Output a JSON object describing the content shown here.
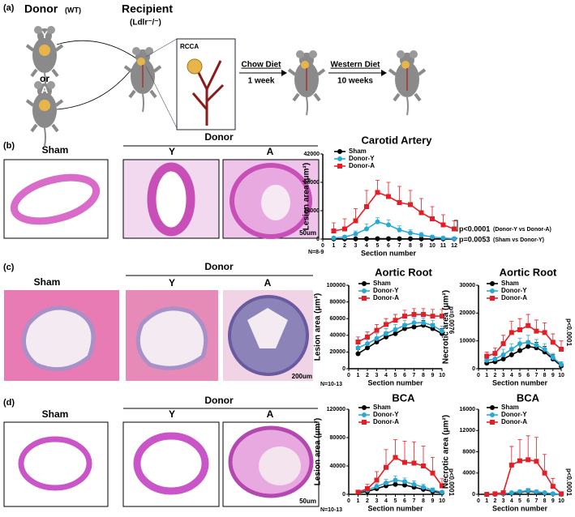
{
  "figure": {
    "panels": [
      "(a)",
      "(b)",
      "(c)",
      "(d)"
    ]
  },
  "schematic": {
    "donor": "Donor",
    "donor_strain": "(WT)",
    "recipient": "Recipient",
    "recipient_strain": "(Ldlr⁻/⁻)",
    "y": "Y",
    "or": "or",
    "a": "A",
    "inset": "RCCA",
    "step1": "Chow Diet",
    "step1_time": "1 week",
    "step2": "Western Diet",
    "step2_time": "10 weeks"
  },
  "micrographs": [
    {
      "sham": "Sham",
      "donor": "Donor",
      "y": "Y",
      "a": "A",
      "scale": "50um"
    },
    {
      "sham": "Sham",
      "donor": "Donor",
      "y": "Y",
      "a": "A",
      "scale": "200um"
    },
    {
      "sham": "Sham",
      "donor": "Donor",
      "y": "Y",
      "a": "A",
      "scale": "50um"
    }
  ],
  "chart_data": [
    {
      "type": "line",
      "title": "Carotid Artery",
      "xlabel": "Section number",
      "ylabel": "Lesion area (μm²)",
      "x": [
        1,
        2,
        3,
        4,
        5,
        6,
        7,
        8,
        9,
        10,
        11,
        12
      ],
      "xlim": [
        0,
        12
      ],
      "xticks": [
        0,
        1,
        2,
        3,
        4,
        5,
        6,
        7,
        8,
        9,
        10,
        11,
        12
      ],
      "ylim": [
        0,
        42000
      ],
      "yticks": [
        0,
        14000,
        28000,
        42000
      ],
      "series": [
        {
          "name": "Sham",
          "color": "#000000",
          "marker": "circle",
          "values": [
            100,
            100,
            100,
            150,
            200,
            200,
            150,
            150,
            100,
            100,
            100,
            100
          ],
          "errors": [
            100,
            100,
            100,
            150,
            200,
            200,
            150,
            150,
            100,
            100,
            100,
            100
          ]
        },
        {
          "name": "Donor-Y",
          "color": "#29a9d6",
          "marker": "circle",
          "values": [
            500,
            1000,
            2500,
            5000,
            8500,
            7000,
            4500,
            3000,
            2000,
            1000,
            500,
            200
          ],
          "errors": [
            500,
            800,
            1500,
            2500,
            2000,
            2500,
            2000,
            1500,
            1200,
            800,
            500,
            300
          ]
        },
        {
          "name": "Donor-A",
          "color": "#e21f26",
          "marker": "square",
          "values": [
            4000,
            5000,
            9000,
            16000,
            23000,
            21000,
            18000,
            17000,
            13000,
            10000,
            7000,
            5000
          ],
          "errors": [
            4000,
            5000,
            6000,
            8000,
            6000,
            7000,
            8000,
            7000,
            7000,
            6000,
            5000,
            4000
          ]
        }
      ],
      "annotations": [
        "p<0.0001",
        "(Donor-Y vs Donor-A)",
        "p=0.0053",
        "(Sham vs Donor-Y)",
        "N=8-9"
      ]
    },
    {
      "type": "line",
      "title": "Aortic Root",
      "xlabel": "Section number",
      "ylabel": "Lesion area (μm²)",
      "x": [
        1,
        2,
        3,
        4,
        5,
        6,
        7,
        8,
        9,
        10
      ],
      "xlim": [
        0,
        10
      ],
      "xticks": [
        0,
        1,
        2,
        3,
        4,
        5,
        6,
        7,
        8,
        9,
        10
      ],
      "ylim": [
        0,
        100000
      ],
      "yticks": [
        0,
        20000,
        40000,
        60000,
        80000,
        100000
      ],
      "series": [
        {
          "name": "Sham",
          "color": "#000000",
          "marker": "circle",
          "values": [
            18000,
            25000,
            32000,
            38000,
            42000,
            48000,
            50000,
            52000,
            48000,
            42000
          ],
          "errors": [
            5000,
            5000,
            6000,
            6000,
            6000,
            6000,
            6000,
            6000,
            6000,
            6000
          ]
        },
        {
          "name": "Donor-Y",
          "color": "#29a9d6",
          "marker": "circle",
          "values": [
            25000,
            30000,
            36000,
            42000,
            47000,
            52000,
            55000,
            55000,
            52000,
            45000
          ],
          "errors": [
            5000,
            5000,
            6000,
            6000,
            6000,
            6000,
            6000,
            6000,
            6000,
            6000
          ]
        },
        {
          "name": "Donor-A",
          "color": "#e21f26",
          "marker": "square",
          "values": [
            32000,
            38000,
            46000,
            53000,
            58000,
            63000,
            65000,
            65000,
            63000,
            63000
          ],
          "errors": [
            6000,
            6000,
            7000,
            7000,
            7000,
            7000,
            7000,
            7000,
            8000,
            8000
          ]
        }
      ],
      "annotations": [
        "p=0.0076",
        "N=10-13"
      ]
    },
    {
      "type": "line",
      "title": "Aortic Root",
      "xlabel": "Section number",
      "ylabel": "Necrotic area (μm²)",
      "x": [
        1,
        2,
        3,
        4,
        5,
        6,
        7,
        8,
        9,
        10
      ],
      "xlim": [
        0,
        10
      ],
      "xticks": [
        0,
        1,
        2,
        3,
        4,
        5,
        6,
        7,
        8,
        9,
        10
      ],
      "ylim": [
        0,
        30000
      ],
      "yticks": [
        0,
        10000,
        20000,
        30000
      ],
      "series": [
        {
          "name": "Sham",
          "color": "#000000",
          "marker": "circle",
          "values": [
            2000,
            2500,
            3500,
            5000,
            6500,
            8000,
            7500,
            6000,
            3500,
            1000
          ],
          "errors": [
            1000,
            1000,
            1500,
            1500,
            2000,
            2000,
            2000,
            2000,
            1500,
            1000
          ]
        },
        {
          "name": "Donor-Y",
          "color": "#29a9d6",
          "marker": "circle",
          "values": [
            3000,
            3500,
            5000,
            7000,
            9000,
            9500,
            8500,
            7000,
            4000,
            1500
          ],
          "errors": [
            1000,
            1500,
            2000,
            2000,
            2000,
            2500,
            2000,
            2000,
            1500,
            1000
          ]
        },
        {
          "name": "Donor-A",
          "color": "#e21f26",
          "marker": "square",
          "values": [
            4500,
            5500,
            9000,
            13000,
            14000,
            15500,
            13500,
            13000,
            9500,
            7000
          ],
          "errors": [
            1500,
            2000,
            3000,
            4000,
            4000,
            4000,
            4000,
            3500,
            3000,
            3000
          ]
        }
      ],
      "annotations": [
        "p<0.0001"
      ]
    },
    {
      "type": "line",
      "title": "BCA",
      "xlabel": "Section number",
      "ylabel": "Lesion area (μm²)",
      "x": [
        1,
        2,
        3,
        4,
        5,
        6,
        7,
        8,
        9,
        10
      ],
      "xlim": [
        0,
        10
      ],
      "xticks": [
        0,
        1,
        2,
        3,
        4,
        5,
        6,
        7,
        8,
        9,
        10
      ],
      "ylim": [
        0,
        120000
      ],
      "yticks": [
        0,
        40000,
        80000,
        120000
      ],
      "series": [
        {
          "name": "Sham",
          "color": "#000000",
          "marker": "circle",
          "values": [
            2000,
            4000,
            8000,
            12000,
            14000,
            13000,
            10000,
            7000,
            4000,
            2000
          ],
          "errors": [
            1000,
            2000,
            3000,
            4000,
            4000,
            4000,
            3000,
            3000,
            2000,
            1000
          ]
        },
        {
          "name": "Donor-Y",
          "color": "#29a9d6",
          "marker": "circle",
          "values": [
            3000,
            6000,
            11000,
            16000,
            20000,
            18000,
            14000,
            10000,
            6000,
            3000
          ],
          "errors": [
            2000,
            3000,
            4000,
            5000,
            6000,
            5000,
            5000,
            4000,
            3000,
            2000
          ]
        },
        {
          "name": "Donor-A",
          "color": "#e21f26",
          "marker": "square",
          "values": [
            3000,
            8000,
            20000,
            38000,
            52000,
            45000,
            44000,
            40000,
            30000,
            12000
          ],
          "errors": [
            2000,
            6000,
            12000,
            25000,
            25000,
            30000,
            30000,
            28000,
            22000,
            10000
          ]
        }
      ],
      "annotations": [
        "p<0.0001",
        "N=10-13"
      ]
    },
    {
      "type": "line",
      "title": "BCA",
      "xlabel": "Section number",
      "ylabel": "Necrotic area (μm²)",
      "x": [
        1,
        2,
        3,
        4,
        5,
        6,
        7,
        8,
        9,
        10
      ],
      "xlim": [
        0,
        10
      ],
      "xticks": [
        0,
        1,
        2,
        3,
        4,
        5,
        6,
        7,
        8,
        9,
        10
      ],
      "ylim": [
        0,
        16000
      ],
      "yticks": [
        0,
        4000,
        8000,
        12000,
        16000
      ],
      "series": [
        {
          "name": "Sham",
          "color": "#000000",
          "marker": "circle",
          "values": [
            0,
            0,
            100,
            200,
            400,
            600,
            400,
            200,
            100,
            0
          ],
          "errors": [
            0,
            0,
            100,
            200,
            300,
            400,
            300,
            200,
            100,
            0
          ]
        },
        {
          "name": "Donor-Y",
          "color": "#29a9d6",
          "marker": "circle",
          "values": [
            0,
            0,
            100,
            300,
            500,
            700,
            500,
            300,
            100,
            0
          ],
          "errors": [
            0,
            0,
            100,
            200,
            300,
            400,
            300,
            200,
            100,
            0
          ]
        },
        {
          "name": "Donor-A",
          "color": "#e21f26",
          "marker": "square",
          "values": [
            0,
            100,
            300,
            5500,
            6300,
            6500,
            6200,
            4000,
            1500,
            100
          ],
          "errors": [
            0,
            100,
            300,
            3500,
            4000,
            4500,
            4500,
            3500,
            1500,
            200
          ]
        }
      ],
      "annotations": [
        "p<0.0001"
      ]
    }
  ]
}
